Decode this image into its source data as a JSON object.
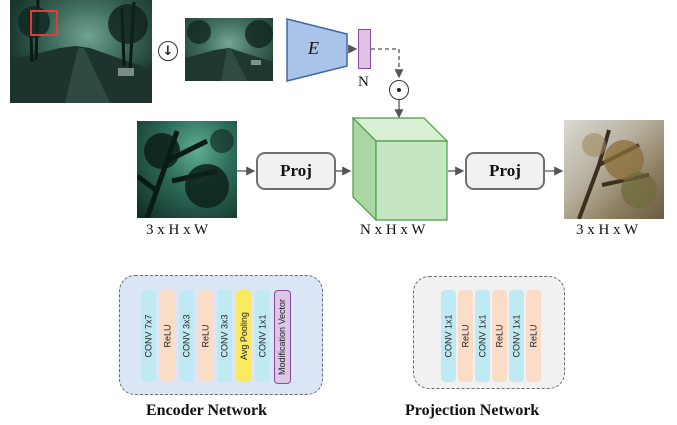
{
  "encoder_symbol": "E",
  "vector_symbol": "N",
  "downsample_symbol": "↓",
  "multiply_symbol": "⊙",
  "proj_label": "Proj",
  "dims": {
    "input": "3 x H x W",
    "feature": "N x H x W",
    "output": "3 x H x W"
  },
  "encoder_network": {
    "title": "Encoder Network",
    "layers": [
      {
        "label": "CONV  7x7",
        "color": "#bfe9f3"
      },
      {
        "label": "ReLU",
        "color": "#fbdcc7"
      },
      {
        "label": "CONV  3x3",
        "color": "#bfe9f3"
      },
      {
        "label": "ReLU",
        "color": "#fbdcc7"
      },
      {
        "label": "CONV  3x3",
        "color": "#bfe9f3"
      },
      {
        "label": "Avg Pooling",
        "color": "#fbe95f"
      },
      {
        "label": "CONV  1x1",
        "color": "#bfe9f3"
      },
      {
        "label": "Modification Vector",
        "color": "#dcc8e6"
      }
    ]
  },
  "projection_network": {
    "title": "Projection Network",
    "layers": [
      {
        "label": "CONV  1x1",
        "color": "#bfe9f3"
      },
      {
        "label": "ReLU",
        "color": "#fbdcc7"
      },
      {
        "label": "CONV  1x1",
        "color": "#bfe9f3"
      },
      {
        "label": "ReLU",
        "color": "#fbdcc7"
      },
      {
        "label": "CONV  1x1",
        "color": "#bfe9f3"
      },
      {
        "label": "ReLU",
        "color": "#fbdcc7"
      }
    ]
  },
  "colors": {
    "encoder_fill": "#aac3e8",
    "vector_fill": "#dcc3e6",
    "cube_fill": "#c4e6c0",
    "encoder_panel": "#dae6f6",
    "projection_panel": "#f1f1f1",
    "highlight_box": "#e23b3b"
  }
}
